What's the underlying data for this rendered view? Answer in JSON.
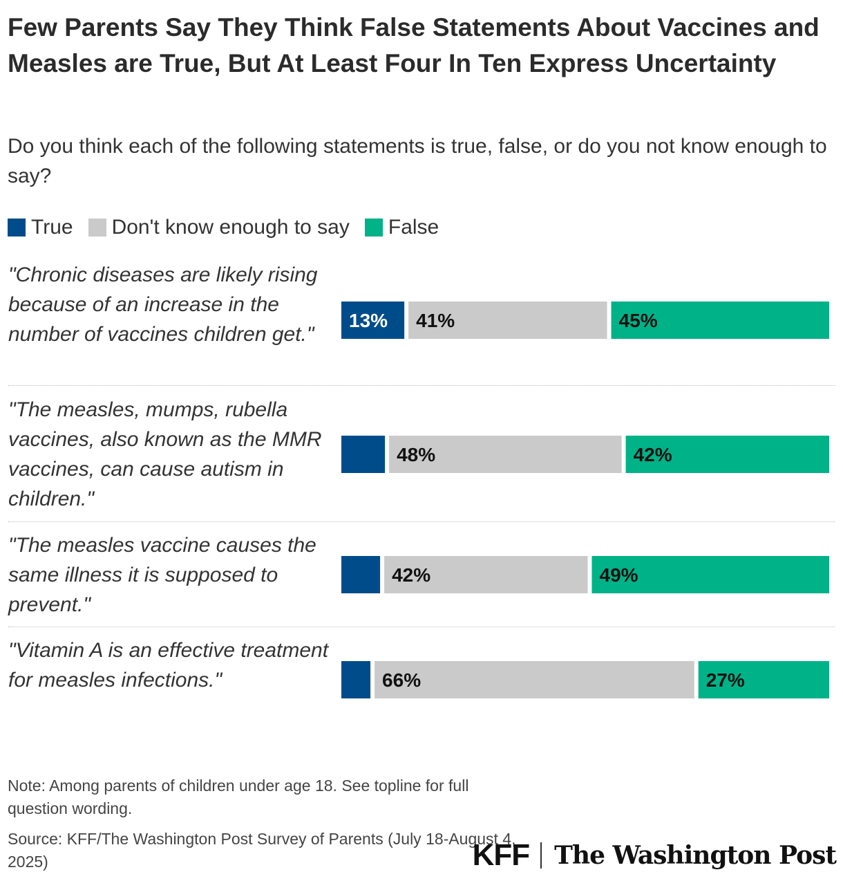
{
  "title": "Few Parents Say They Think False Statements About Vaccines and Measles are True, But At Least Four In Ten Express Uncertainty",
  "subtitle": "Do you think each of the following statements is true, false, or do you not know enough to say?",
  "legend": [
    {
      "label": "True",
      "color": "#004C8A"
    },
    {
      "label": "Don't know enough to say",
      "color": "#CACACA"
    },
    {
      "label": "False",
      "color": "#00B287"
    }
  ],
  "chart_data": {
    "type": "bar",
    "orientation": "horizontal",
    "stacked": true,
    "categories": [
      "\"Chronic diseases are likely rising because of an increase in the number of vaccines children get.\"",
      "\"The measles, mumps, rubella vaccines, also known as the MMR vaccines, can cause autism in children.\"",
      "\"The measles vaccine causes the same illness it is supposed to prevent.\"",
      "\"Vitamin A is an effective treatment for measles infections.\""
    ],
    "series": [
      {
        "name": "True",
        "color": "#004C8A",
        "values": [
          13,
          9,
          8,
          6
        ],
        "labels": [
          "13%",
          "",
          "",
          ""
        ]
      },
      {
        "name": "Don't know enough to say",
        "color": "#CACACA",
        "values": [
          41,
          48,
          42,
          66
        ],
        "labels": [
          "41%",
          "48%",
          "42%",
          "66%"
        ]
      },
      {
        "name": "False",
        "color": "#00B287",
        "values": [
          45,
          42,
          49,
          27
        ],
        "labels": [
          "45%",
          "42%",
          "49%",
          "27%"
        ]
      }
    ],
    "xlim": [
      0,
      100
    ]
  },
  "note": "Note: Among parents of children under age 18. See topline for full question wording.",
  "source": "Source: KFF/The Washington Post Survey of Parents (July 18-August 4, 2025)",
  "logos": {
    "kff": "KFF",
    "wapo": "The Washington Post"
  }
}
